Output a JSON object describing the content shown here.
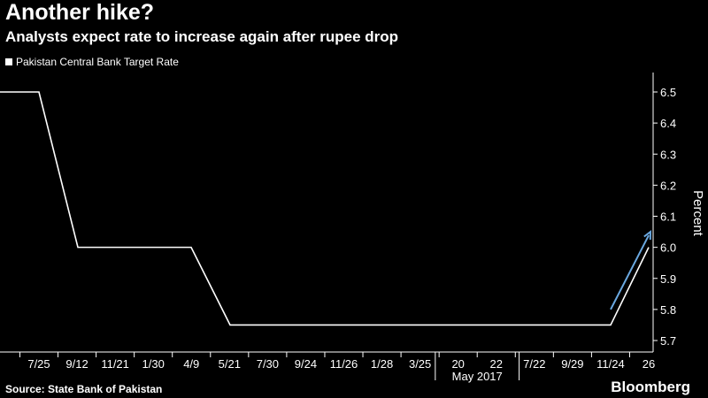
{
  "title": "Another hike?",
  "subtitle": "Analysts expect rate to increase again after rupee drop",
  "legend": {
    "label": "Pakistan Central Bank Target Rate"
  },
  "source": "Source: State Bank of Pakistan",
  "brand": "Bloomberg",
  "colors": {
    "background": "#000000",
    "line": "#ffffff",
    "arrow": "#6aa8e0",
    "axis": "#ffffff"
  },
  "chart_data": {
    "type": "line",
    "title": "Another hike?",
    "subtitle": "Analysts expect rate to increase again after rupee drop",
    "xlabel": "",
    "ylabel": "Percent",
    "ylim": [
      5.7,
      6.5
    ],
    "yticks": [
      "6.5",
      "6.4",
      "6.3",
      "6.2",
      "6.1",
      "6.0",
      "5.9",
      "5.8",
      "5.7"
    ],
    "xticks": [
      "7/25",
      "9/12",
      "11/21",
      "1/30",
      "4/9",
      "5/21",
      "7/30",
      "9/24",
      "11/26",
      "1/28",
      "3/25",
      "20",
      "22",
      "7/22",
      "9/29",
      "11/24",
      "26"
    ],
    "xtick_period_label": "May 2017",
    "grid": false,
    "legend_position": "top-left",
    "series": [
      {
        "name": "Pakistan Central Bank Target Rate",
        "values": [
          6.5,
          6.5,
          6.0,
          6.0,
          6.0,
          5.75,
          5.75,
          5.75,
          5.75,
          5.75,
          5.75,
          5.75,
          5.75,
          5.75,
          5.75,
          5.75,
          5.75,
          6.0
        ]
      }
    ],
    "annotations": [
      {
        "type": "arrow",
        "from": 5.8,
        "to": 6.05,
        "meaning": "expected increase"
      }
    ]
  }
}
